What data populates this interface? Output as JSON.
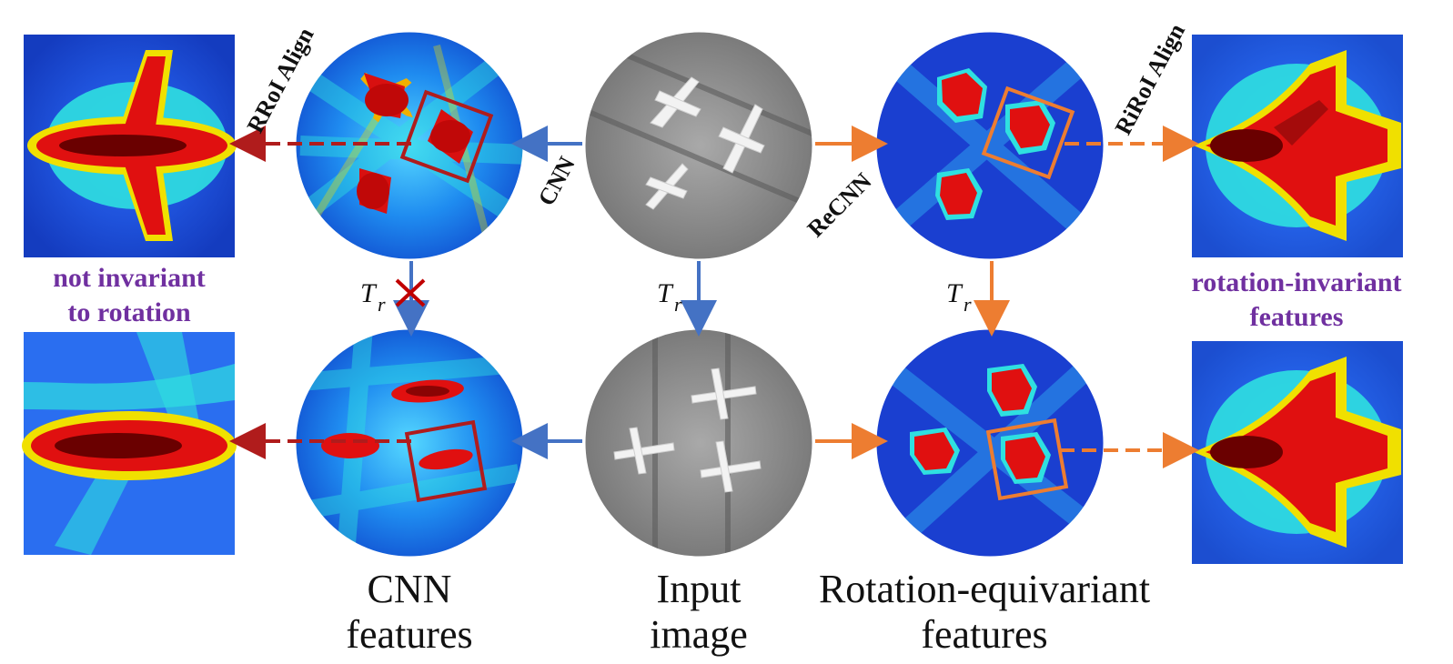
{
  "labels": {
    "rroi_align": "RRoI Align",
    "riroi_align": "RiRoI Align",
    "cnn_arrow": "CNN",
    "recnn_arrow": "ReCNN",
    "transform_symbol": "T",
    "transform_subscript": "r",
    "not_invariant_line1": "not invariant",
    "not_invariant_line2": "to rotation",
    "invariant_line1": "rotation-invariant",
    "invariant_line2": "features",
    "caption_cnn_line1": "CNN",
    "caption_cnn_line2": "features",
    "caption_input_line1": "Input",
    "caption_input_line2": "image",
    "caption_requi_line1": "Rotation-equivariant",
    "caption_requi_line2": "features"
  },
  "colors": {
    "blue_arrow": "#4472c4",
    "orange_arrow": "#ed7d31",
    "dark_red": "#b01c1c",
    "purple_text": "#7030a0",
    "heatmap_bg": "#1f4fd6",
    "heatmap_hot": "#e01010",
    "heatmap_core": "#6a0000",
    "heatmap_warm": "#ffe400",
    "heatmap_cool": "#2fe0e0"
  }
}
